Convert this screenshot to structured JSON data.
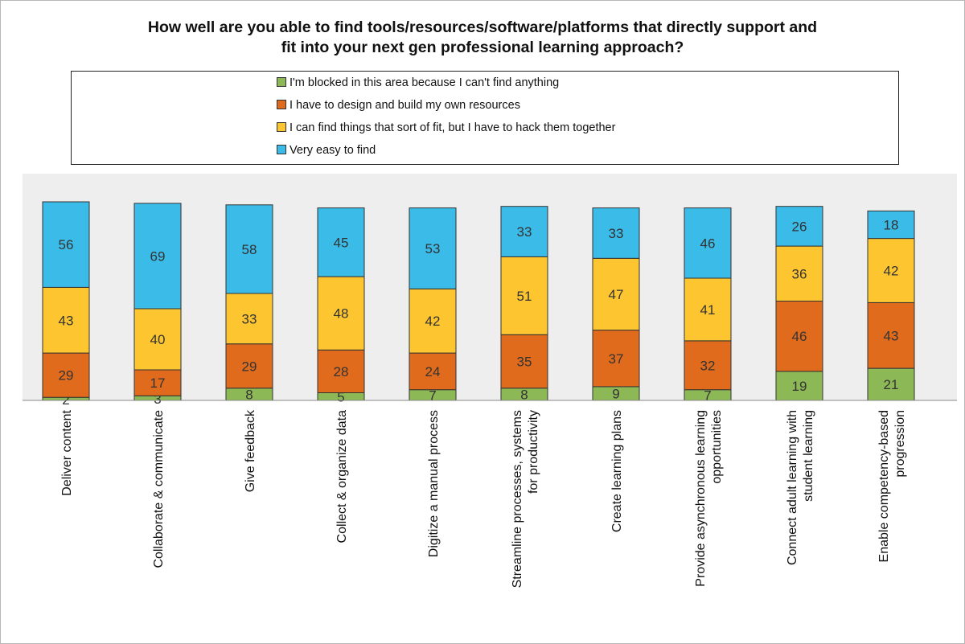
{
  "chart_data": {
    "type": "bar",
    "stacked": true,
    "title": "How well are you able to find tools/resources/software/platforms that directly support and fit into your next gen professional learning approach?",
    "title_lines": [
      "How well are you able to find tools/resources/software/platforms that directly support and",
      "fit into your next gen professional learning approach?"
    ],
    "legend_placement": "top",
    "grid": false,
    "categories": [
      [
        "Deliver content"
      ],
      [
        "Collaborate & communicate"
      ],
      [
        "Give feedback"
      ],
      [
        "Collect & organize data"
      ],
      [
        "Digitize a manual process"
      ],
      [
        "Streamline processes, systems",
        "for productivity"
      ],
      [
        "Create learning plans"
      ],
      [
        "Provide asynchronous learning",
        "opportunities"
      ],
      [
        "Connect adult learning with",
        "student learning"
      ],
      [
        "Enable competency-based",
        "progression"
      ]
    ],
    "series": [
      {
        "name": "I'm blocked in this area because I can't find anything",
        "color": "#8cb855",
        "values": [
          2,
          3,
          8,
          5,
          7,
          8,
          9,
          7,
          19,
          21
        ]
      },
      {
        "name": "I have to design and build my own resources",
        "color": "#e06b1c",
        "values": [
          29,
          17,
          29,
          28,
          24,
          35,
          37,
          32,
          46,
          43
        ]
      },
      {
        "name": "I can find things that sort of fit, but I have to hack them together",
        "color": "#fdc52f",
        "values": [
          43,
          40,
          33,
          48,
          42,
          51,
          47,
          41,
          36,
          42
        ]
      },
      {
        "name": "Very easy to find",
        "color": "#3bbbe8",
        "values": [
          56,
          69,
          58,
          45,
          53,
          33,
          33,
          46,
          26,
          18
        ]
      }
    ],
    "legend_order": [
      0,
      1,
      2,
      3
    ],
    "plot_background": "#eeeeee"
  }
}
